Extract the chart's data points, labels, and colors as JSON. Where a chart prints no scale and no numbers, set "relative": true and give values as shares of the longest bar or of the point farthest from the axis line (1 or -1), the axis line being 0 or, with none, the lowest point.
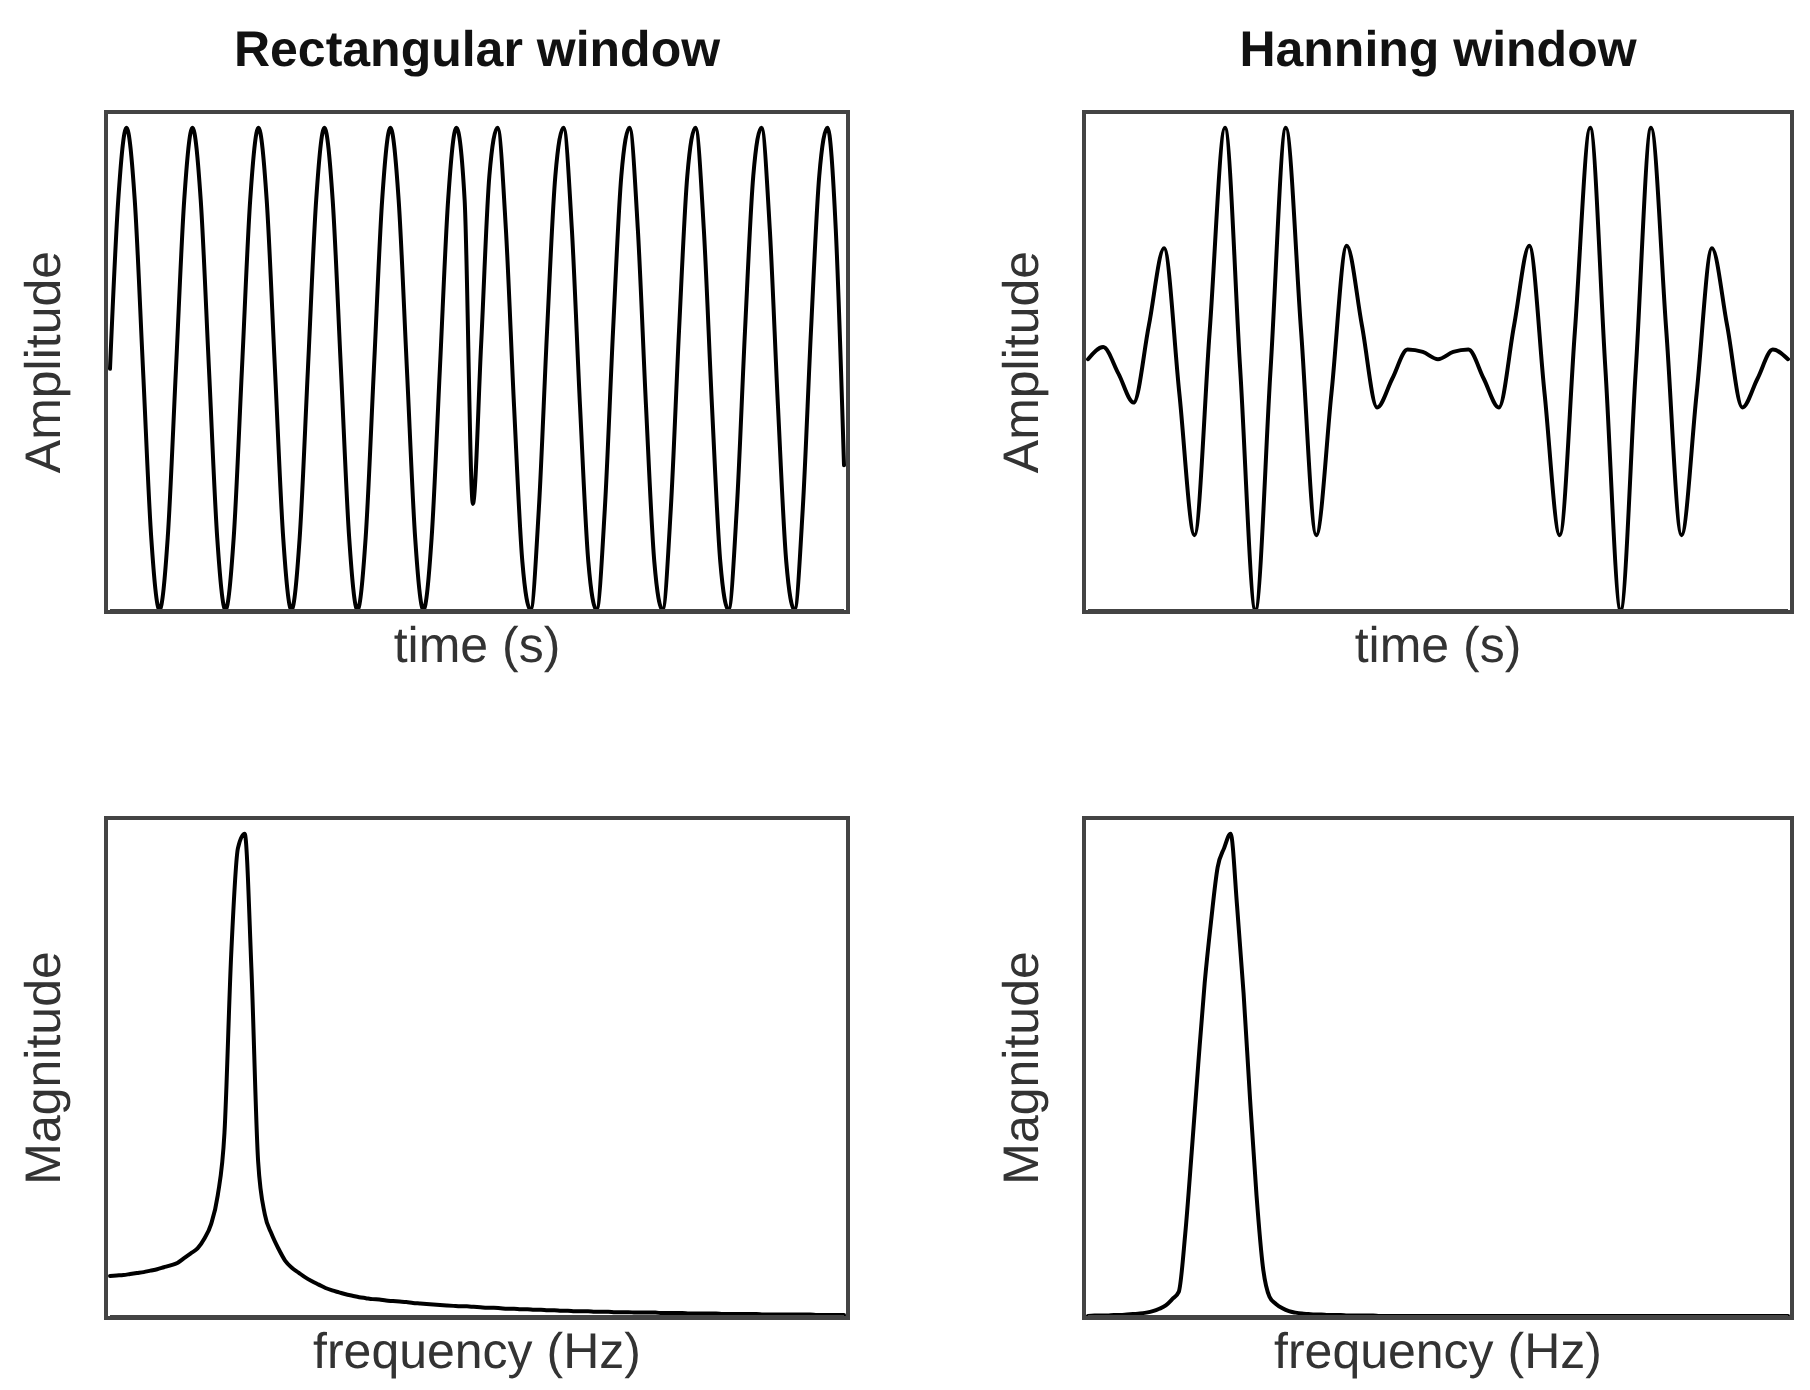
{
  "chart_data": [
    {
      "type": "line",
      "title": "Rectangular window",
      "xlabel": "time (s)",
      "ylabel": "Amplitude",
      "relative": true,
      "tick_labels": false,
      "color": "#000000",
      "categories": [
        null,
        null,
        null,
        null,
        null,
        null,
        null,
        null,
        null,
        null,
        null,
        null,
        null,
        null,
        null,
        null,
        null,
        null,
        null,
        null,
        null,
        null,
        null,
        null,
        null,
        null,
        null,
        null,
        null,
        null,
        null,
        null,
        null,
        null,
        null,
        null,
        null,
        null,
        null,
        null,
        null,
        null,
        null,
        null,
        null,
        null,
        null,
        null,
        null,
        null,
        null,
        null,
        null,
        null,
        null,
        null,
        null,
        null,
        null,
        null,
        null,
        null,
        null,
        null,
        null,
        null,
        null,
        null,
        null,
        null,
        null,
        null,
        null,
        null,
        null,
        null,
        null,
        null,
        null,
        null,
        null,
        null,
        null,
        null,
        null,
        null,
        null,
        null,
        null,
        null
      ],
      "values": [
        0.5,
        0.85,
        1,
        0.85,
        0.5,
        0.15,
        0,
        0.15,
        0.5,
        0.85,
        1,
        0.85,
        0.5,
        0.15,
        0,
        0.15,
        0.5,
        0.85,
        1,
        0.85,
        0.5,
        0.15,
        0,
        0.15,
        0.5,
        0.85,
        1,
        0.85,
        0.5,
        0.15,
        0,
        0.15,
        0.5,
        0.85,
        1,
        0.85,
        0.5,
        0.15,
        0,
        0.15,
        0.5,
        0.85,
        1,
        0.85,
        0.22,
        0.55,
        0.9,
        1,
        0.79,
        0.42,
        0.1,
        0,
        0.21,
        0.58,
        0.9,
        1,
        0.79,
        0.42,
        0.1,
        0,
        0.21,
        0.58,
        0.9,
        1,
        0.79,
        0.42,
        0.1,
        0,
        0.21,
        0.58,
        0.9,
        1,
        0.79,
        0.42,
        0.1,
        0,
        0.21,
        0.58,
        0.9,
        1,
        0.79,
        0.42,
        0.1,
        0,
        0.21,
        0.58,
        0.9,
        1,
        0.79,
        0.3
      ]
    },
    {
      "type": "line",
      "title": "Hanning window",
      "xlabel": "time (s)",
      "ylabel": "Amplitude",
      "relative": true,
      "tick_labels": false,
      "color": "#000000",
      "categories": [
        null,
        null,
        null,
        null,
        null,
        null,
        null,
        null,
        null,
        null,
        null,
        null,
        null,
        null,
        null,
        null,
        null,
        null,
        null,
        null,
        null,
        null,
        null,
        null,
        null,
        null,
        null,
        null,
        null,
        null,
        null,
        null,
        null,
        null,
        null,
        null,
        null,
        null,
        null,
        null,
        null,
        null,
        null,
        null,
        null,
        null,
        null
      ],
      "values": [
        0.52,
        0.545,
        0.49,
        0.43,
        0.59,
        0.75,
        0.45,
        0.155,
        0.58,
        1,
        0.5,
        0,
        0.5,
        1,
        0.58,
        0.155,
        0.45,
        0.755,
        0.59,
        0.42,
        0.48,
        0.54,
        0.535,
        0.52,
        0.535,
        0.54,
        0.48,
        0.42,
        0.59,
        0.755,
        0.45,
        0.155,
        0.58,
        1,
        0.5,
        0,
        0.5,
        1,
        0.58,
        0.155,
        0.45,
        0.75,
        0.59,
        0.42,
        0.48,
        0.54,
        0.52
      ]
    },
    {
      "type": "line",
      "xlabel": "frequency (Hz)",
      "ylabel": "Magnitude",
      "relative": true,
      "tick_labels": false,
      "color": "#000000",
      "categories": [
        null,
        null,
        null,
        null,
        null,
        null,
        null,
        null,
        null,
        null,
        null,
        null,
        null,
        null,
        null,
        null,
        null,
        null,
        null,
        null,
        null,
        null,
        null,
        null,
        null,
        null,
        null,
        null,
        null,
        null,
        null,
        null,
        null,
        null,
        null,
        null,
        null,
        null,
        null,
        null,
        null,
        null,
        null,
        null,
        null,
        null,
        null,
        null,
        null,
        null,
        null,
        null,
        null,
        null,
        null,
        null,
        null,
        null,
        null,
        null,
        null,
        null,
        null,
        null,
        null,
        null,
        null,
        null,
        null,
        null,
        null,
        null,
        null,
        null,
        null,
        null,
        null,
        null,
        null,
        null,
        null,
        null,
        null,
        null,
        null,
        null,
        null,
        null,
        null,
        null,
        null,
        null,
        null,
        null,
        null,
        null,
        null,
        null,
        null,
        null,
        null,
        null,
        null,
        null,
        null,
        null,
        null,
        null,
        null,
        null
      ],
      "values": [
        0.083,
        0.084,
        0.085,
        0.087,
        0.089,
        0.091,
        0.094,
        0.097,
        0.101,
        0.105,
        0.11,
        0.12,
        0.13,
        0.14,
        0.16,
        0.19,
        0.25,
        0.38,
        0.75,
        0.97,
        1,
        0.72,
        0.32,
        0.21,
        0.17,
        0.14,
        0.115,
        0.1,
        0.09,
        0.08,
        0.072,
        0.065,
        0.058,
        0.053,
        0.049,
        0.045,
        0.042,
        0.039,
        0.037,
        0.035,
        0.034,
        0.032,
        0.031,
        0.03,
        0.029,
        0.027,
        0.026,
        0.025,
        0.024,
        0.023,
        0.022,
        0.021,
        0.02,
        0.02,
        0.019,
        0.018,
        0.017,
        0.017,
        0.016,
        0.015,
        0.015,
        0.014,
        0.014,
        0.013,
        0.013,
        0.012,
        0.012,
        0.011,
        0.011,
        0.01,
        0.01,
        0.01,
        0.009,
        0.009,
        0.009,
        0.008,
        0.008,
        0.008,
        0.007,
        0.007,
        0.007,
        0.007,
        0.006,
        0.006,
        0.006,
        0.006,
        0.005,
        0.005,
        0.005,
        0.005,
        0.005,
        0.004,
        0.004,
        0.004,
        0.004,
        0.004,
        0.004,
        0.003,
        0.003,
        0.003,
        0.003,
        0.003,
        0.003,
        0.003,
        0.003,
        0.002,
        0.002,
        0.002,
        0.002,
        0.002
      ]
    },
    {
      "type": "line",
      "xlabel": "frequency (Hz)",
      "ylabel": "Magnitude",
      "relative": true,
      "tick_labels": false,
      "color": "#000000",
      "categories": [
        null,
        null,
        null,
        null,
        null,
        null,
        null,
        null,
        null,
        null,
        null,
        null,
        null,
        null,
        null,
        null,
        null,
        null,
        null,
        null,
        null,
        null,
        null,
        null,
        null,
        null,
        null,
        null,
        null,
        null,
        null,
        null,
        null,
        null,
        null,
        null,
        null,
        null,
        null,
        null,
        null,
        null,
        null,
        null,
        null,
        null,
        null,
        null,
        null,
        null,
        null,
        null,
        null,
        null,
        null,
        null,
        null,
        null,
        null,
        null,
        null,
        null,
        null,
        null,
        null,
        null,
        null,
        null,
        null,
        null,
        null,
        null,
        null,
        null,
        null,
        null,
        null,
        null,
        null,
        null,
        null,
        null,
        null,
        null,
        null,
        null,
        null,
        null,
        null,
        null,
        null,
        null,
        null,
        null,
        null,
        null,
        null,
        null,
        null,
        null,
        null,
        null,
        null,
        null,
        null,
        null,
        null,
        null,
        null
      ],
      "values": [
        0,
        0.001,
        0.001,
        0.001,
        0.002,
        0.002,
        0.003,
        0.004,
        0.005,
        0.007,
        0.01,
        0.015,
        0.022,
        0.035,
        0.05,
        0.17,
        0.34,
        0.52,
        0.69,
        0.82,
        0.93,
        0.97,
        1,
        0.85,
        0.67,
        0.45,
        0.25,
        0.1,
        0.04,
        0.025,
        0.016,
        0.01,
        0.007,
        0.005,
        0.004,
        0.003,
        0.003,
        0.002,
        0.002,
        0.002,
        0.001,
        0.001,
        0.001,
        0.001,
        0.001,
        0,
        0,
        0,
        0,
        0,
        0,
        0,
        0,
        0,
        0,
        0,
        0,
        0,
        0,
        0,
        0,
        0,
        0,
        0,
        0,
        0,
        0,
        0,
        0,
        0,
        0,
        0,
        0,
        0,
        0,
        0,
        0,
        0,
        0,
        0,
        0,
        0,
        0,
        0,
        0,
        0,
        0,
        0,
        0,
        0,
        0,
        0,
        0,
        0,
        0,
        0,
        0,
        0,
        0,
        0,
        0,
        0,
        0,
        0,
        0,
        0,
        0,
        0,
        0
      ]
    }
  ]
}
